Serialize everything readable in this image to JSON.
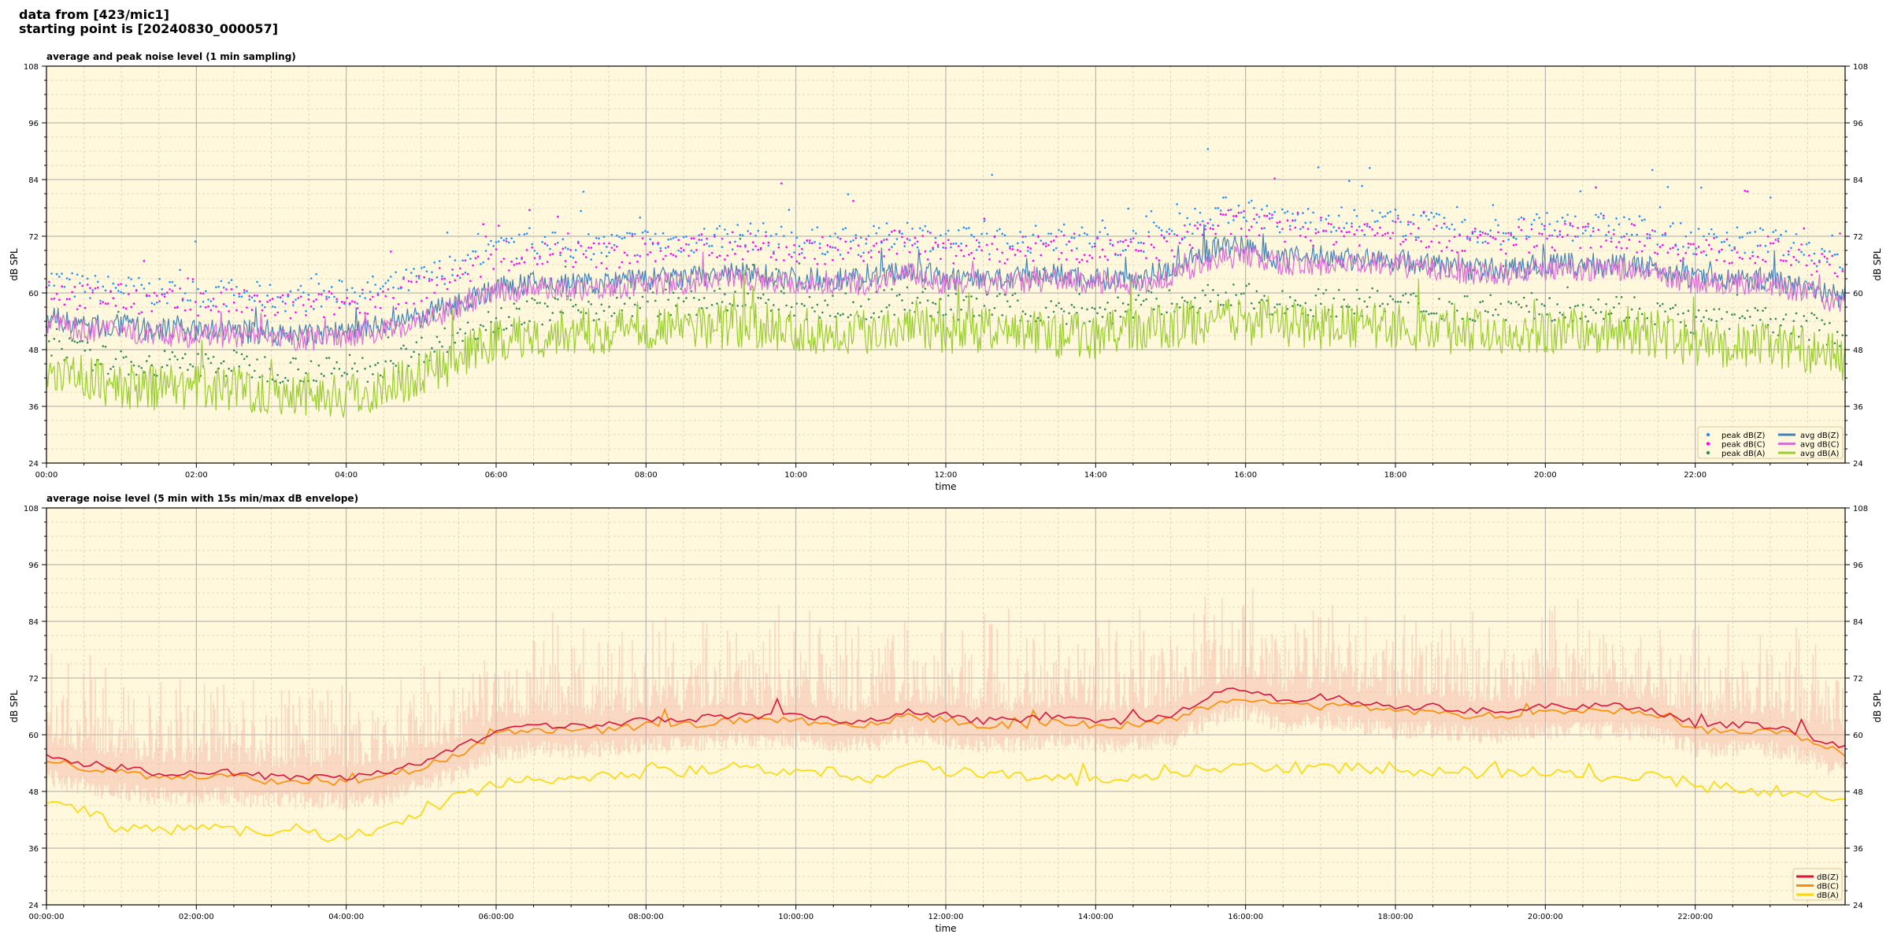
{
  "header": {
    "line1": "data from [423/mic1]",
    "line2": "starting point is [20240830_000057]"
  },
  "colors": {
    "background": "#fff8dc",
    "avg_z": "#4682b4",
    "avg_c": "#da70d6",
    "avg_a": "#9acd32",
    "peak_z": "#1e90ff",
    "peak_c": "#ff00ff",
    "peak_a": "#2e8b57",
    "z": "#dc143c",
    "c": "#ff8c00",
    "a": "#ffd700",
    "envelope": "#f4b0a0"
  },
  "chart_data": [
    {
      "type": "line",
      "title": "average and peak noise level (1 min sampling)",
      "xlabel": "time",
      "ylabel": "dB SPL",
      "ylim": [
        24,
        108
      ],
      "xlim_hours": [
        0,
        24
      ],
      "yticks": [
        "24",
        "36",
        "48",
        "60",
        "72",
        "84",
        "96",
        "108"
      ],
      "xticks": [
        "00:00",
        "02:00",
        "04:00",
        "06:00",
        "08:00",
        "10:00",
        "12:00",
        "14:00",
        "16:00",
        "18:00",
        "20:00",
        "22:00"
      ],
      "grid": true,
      "legend": "lower-right",
      "x_hours": [
        0,
        0.5,
        1,
        1.5,
        2,
        2.5,
        3,
        3.5,
        4,
        4.5,
        5,
        5.5,
        6,
        6.5,
        7,
        7.5,
        8,
        8.5,
        9,
        9.5,
        10,
        10.5,
        11,
        11.5,
        12,
        12.5,
        13,
        13.5,
        14,
        14.5,
        15,
        15.5,
        16,
        16.5,
        17,
        17.5,
        18,
        18.5,
        19,
        19.5,
        20,
        20.5,
        21,
        21.5,
        22,
        22.5,
        23,
        23.5,
        24
      ],
      "series": [
        {
          "name": "avg dB(Z)",
          "kind": "line",
          "values": [
            55,
            53,
            53,
            52,
            52,
            52,
            51,
            51,
            52,
            53,
            55,
            58,
            61,
            62,
            62,
            62,
            63,
            63,
            64,
            64,
            63,
            63,
            63,
            65,
            63,
            63,
            63,
            64,
            63,
            63,
            65,
            69,
            70,
            67,
            68,
            67,
            67,
            66,
            65,
            65,
            66,
            66,
            66,
            65,
            63,
            63,
            63,
            61,
            59
          ]
        },
        {
          "name": "avg dB(C)",
          "kind": "line",
          "values": [
            54,
            52,
            52,
            51,
            51,
            51,
            50,
            50,
            51,
            52,
            54,
            57,
            60,
            61,
            61,
            61,
            62,
            62,
            63,
            63,
            62,
            62,
            62,
            64,
            62,
            62,
            62,
            63,
            62,
            62,
            63,
            67,
            68,
            66,
            66,
            66,
            66,
            65,
            64,
            64,
            65,
            65,
            65,
            64,
            62,
            62,
            62,
            60,
            57
          ]
        },
        {
          "name": "avg dB(A)",
          "kind": "line",
          "values": [
            45,
            42,
            40,
            40,
            40,
            40,
            39,
            39,
            38,
            40,
            43,
            46,
            50,
            51,
            52,
            52,
            53,
            53,
            53,
            53,
            52,
            52,
            52,
            54,
            52,
            52,
            52,
            51,
            51,
            52,
            53,
            54,
            54,
            53,
            53,
            53,
            53,
            52,
            52,
            52,
            52,
            52,
            52,
            51,
            49,
            49,
            49,
            48,
            46
          ]
        },
        {
          "name": "peak dB(Z)",
          "kind": "scatter"
        },
        {
          "name": "peak dB(C)",
          "kind": "scatter"
        },
        {
          "name": "peak dB(A)",
          "kind": "scatter"
        }
      ]
    },
    {
      "type": "line",
      "title": "average noise level (5 min with 15s min/max dB envelope)",
      "xlabel": "time",
      "ylabel": "dB SPL",
      "ylim": [
        24,
        108
      ],
      "xlim_hours": [
        0,
        24
      ],
      "yticks": [
        "24",
        "36",
        "48",
        "60",
        "72",
        "84",
        "96",
        "108"
      ],
      "xticks": [
        "00:00:00",
        "02:00:00",
        "04:00:00",
        "06:00:00",
        "08:00:00",
        "10:00:00",
        "12:00:00",
        "14:00:00",
        "16:00:00",
        "18:00:00",
        "20:00:00",
        "22:00:00"
      ],
      "grid": true,
      "legend": "lower-right",
      "x_hours": [
        0,
        0.5,
        1,
        1.5,
        2,
        2.5,
        3,
        3.5,
        4,
        4.5,
        5,
        5.5,
        6,
        6.5,
        7,
        7.5,
        8,
        8.5,
        9,
        9.5,
        10,
        10.5,
        11,
        11.5,
        12,
        12.5,
        13,
        13.5,
        14,
        14.5,
        15,
        15.5,
        16,
        16.5,
        17,
        17.5,
        18,
        18.5,
        19,
        19.5,
        20,
        20.5,
        21,
        21.5,
        22,
        22.5,
        23,
        23.5,
        24
      ],
      "series": [
        {
          "name": "dB(Z)",
          "values": [
            56,
            54,
            53,
            52,
            52,
            52,
            51,
            51,
            51,
            52,
            54,
            57,
            61,
            62,
            62,
            62,
            63,
            63,
            64,
            64,
            64,
            63,
            63,
            65,
            64,
            63,
            63,
            64,
            63,
            63,
            64,
            68,
            70,
            67,
            68,
            67,
            66,
            66,
            65,
            65,
            66,
            66,
            66,
            65,
            62,
            62,
            62,
            60,
            57
          ]
        },
        {
          "name": "dB(C)",
          "values": [
            55,
            53,
            52,
            51,
            51,
            51,
            50,
            50,
            50,
            51,
            53,
            56,
            60,
            61,
            61,
            61,
            62,
            62,
            63,
            63,
            63,
            62,
            62,
            64,
            63,
            62,
            62,
            63,
            62,
            62,
            63,
            66,
            68,
            66,
            66,
            66,
            65,
            65,
            64,
            64,
            65,
            65,
            65,
            64,
            61,
            61,
            61,
            59,
            56
          ]
        },
        {
          "name": "dB(A)",
          "values": [
            46,
            44,
            40,
            40,
            40,
            40,
            39,
            39,
            38,
            40,
            43,
            47,
            50,
            50,
            51,
            51,
            52,
            52,
            53,
            53,
            52,
            52,
            51,
            54,
            52,
            52,
            51,
            51,
            50,
            51,
            52,
            53,
            54,
            53,
            53,
            53,
            53,
            52,
            52,
            52,
            52,
            51,
            51,
            51,
            49,
            49,
            48,
            48,
            46
          ]
        }
      ]
    }
  ]
}
